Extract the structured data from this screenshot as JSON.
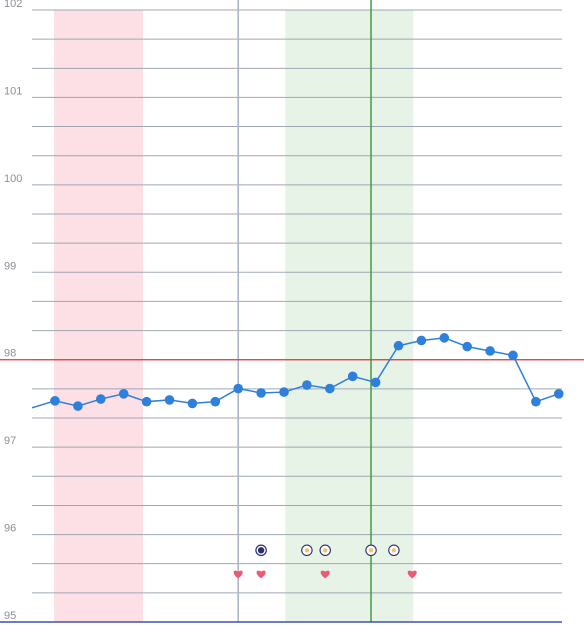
{
  "chart_data": {
    "type": "line",
    "title": "",
    "xlabel": "",
    "ylabel": "",
    "ylim": [
      95,
      102
    ],
    "yticks": [
      "95",
      "96",
      "97",
      "98",
      "99",
      "100",
      "101",
      "102"
    ],
    "grid": true,
    "threshold": 98.0,
    "x": [
      1,
      2,
      3,
      4,
      5,
      6,
      7,
      8,
      9,
      10,
      11,
      12,
      13,
      14,
      15,
      16,
      17,
      18,
      19,
      20,
      21,
      22,
      23
    ],
    "series": [
      {
        "values": [
          97.53,
          97.47,
          97.55,
          97.61,
          97.52,
          97.54,
          97.5,
          97.52,
          97.67,
          97.62,
          97.63,
          97.71,
          97.67,
          97.81,
          97.74,
          98.16,
          98.22,
          98.25,
          98.15,
          98.1,
          98.05,
          97.52,
          97.61
        ],
        "color": "#2f7fdc"
      }
    ],
    "bands": [
      {
        "x_range": [
          1,
          4.8
        ],
        "color": "#fde0e6"
      },
      {
        "x_range": [
          11.1,
          16.6
        ],
        "color": "#e8f3e8"
      }
    ],
    "vertical_lines": [
      {
        "x": 9,
        "color": "#a6b3c6"
      },
      {
        "x": 14.8,
        "color": "#3da13f"
      }
    ],
    "markers": [
      {
        "x": 10,
        "y": 95.82,
        "kind": "dark-circle-icon"
      },
      {
        "x": 12,
        "y": 95.82,
        "kind": "dot-circle-icon"
      },
      {
        "x": 12.8,
        "y": 95.82,
        "kind": "dot-circle-icon"
      },
      {
        "x": 14.8,
        "y": 95.82,
        "kind": "dot-circle-icon"
      },
      {
        "x": 15.8,
        "y": 95.82,
        "kind": "dot-circle-icon"
      },
      {
        "x": 9,
        "y": 95.55,
        "kind": "heart-icon"
      },
      {
        "x": 10,
        "y": 95.55,
        "kind": "heart-icon"
      },
      {
        "x": 12.8,
        "y": 95.55,
        "kind": "heart-icon"
      },
      {
        "x": 16.6,
        "y": 95.55,
        "kind": "heart-icon"
      }
    ],
    "colors": {
      "grid": "#8f9aa8",
      "threshold": "#e53935",
      "axis": "#3f51b5",
      "heart": "#ee5a73",
      "dot_fill": "#f5c26b"
    }
  }
}
